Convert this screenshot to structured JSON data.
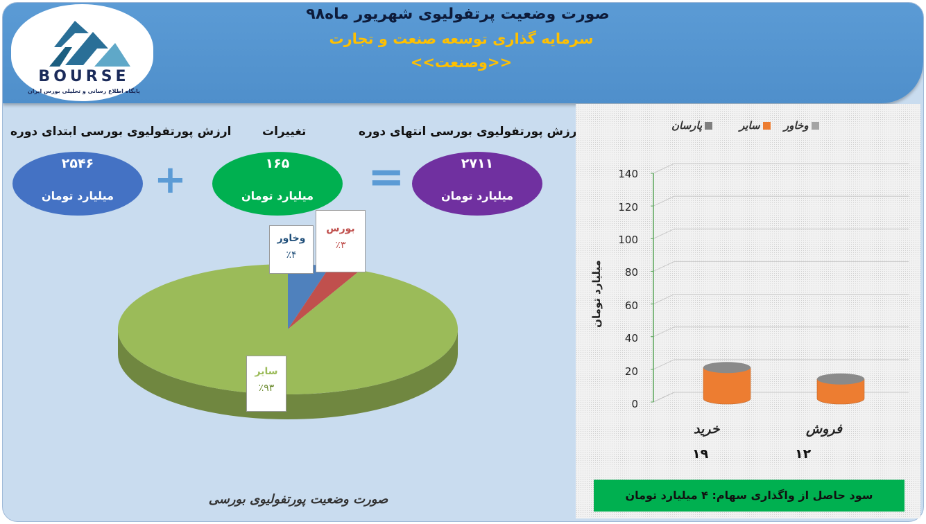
{
  "header": {
    "title": "صورت وضعیت پرتفولیوی شهریور ماه۹۸",
    "subtitle": "سرمایه گذاری توسعه صنعت و تجارت",
    "ticker": "<<وصنعت>>"
  },
  "logo": {
    "text": "BOURSE",
    "subtitle": "پایگاه اطلاع رسانی و تحلیلی بورس ایران"
  },
  "summary": {
    "start_label": "ارزش پورتفولیوی بورسی ابتدای دوره",
    "change_label": "تغییرات",
    "end_label": "ارزش پورتفولیوی بورسی انتهای دوره",
    "start_value": "۲۵۴۶",
    "change_value": "۱۶۵",
    "end_value": "۲۷۱۱",
    "unit": "میلیارد تومان",
    "plus": "+",
    "equals": "="
  },
  "pie_caption": "صورت وضعیت پورتفولیوی بورسی",
  "profit_text": "سود حاصل از واگذاری سهام: ۴ میلیارد تومان",
  "chart_data": [
    {
      "type": "pie",
      "title": "",
      "slices": [
        {
          "name": "سایر",
          "value": 93,
          "label": "٪۹۳",
          "color": "#9bbb59"
        },
        {
          "name": "وخاور",
          "value": 4,
          "label": "٪۴",
          "color": "#4f81bd"
        },
        {
          "name": "بورس",
          "value": 3,
          "label": "٪۳",
          "color": "#c0504d"
        }
      ]
    },
    {
      "type": "bar",
      "title": "",
      "categories": [
        "خرید",
        "فروش"
      ],
      "series": [
        {
          "name": "وخاور",
          "color": "#a5a5a5",
          "values": [
            0,
            0
          ]
        },
        {
          "name": "سایر",
          "color": "#ed7d31",
          "values": [
            19,
            12
          ]
        },
        {
          "name": "پارسان",
          "color": "#7f7f7f",
          "values": [
            0,
            0
          ]
        }
      ],
      "value_labels": [
        "۱۹",
        "۱۲"
      ],
      "ylabel": "میلیارد تومان",
      "ylim": [
        0,
        140
      ],
      "yticks": [
        "0",
        "20",
        "40",
        "60",
        "80",
        "100",
        "120",
        "140"
      ],
      "grid": true,
      "legend": "top"
    }
  ]
}
